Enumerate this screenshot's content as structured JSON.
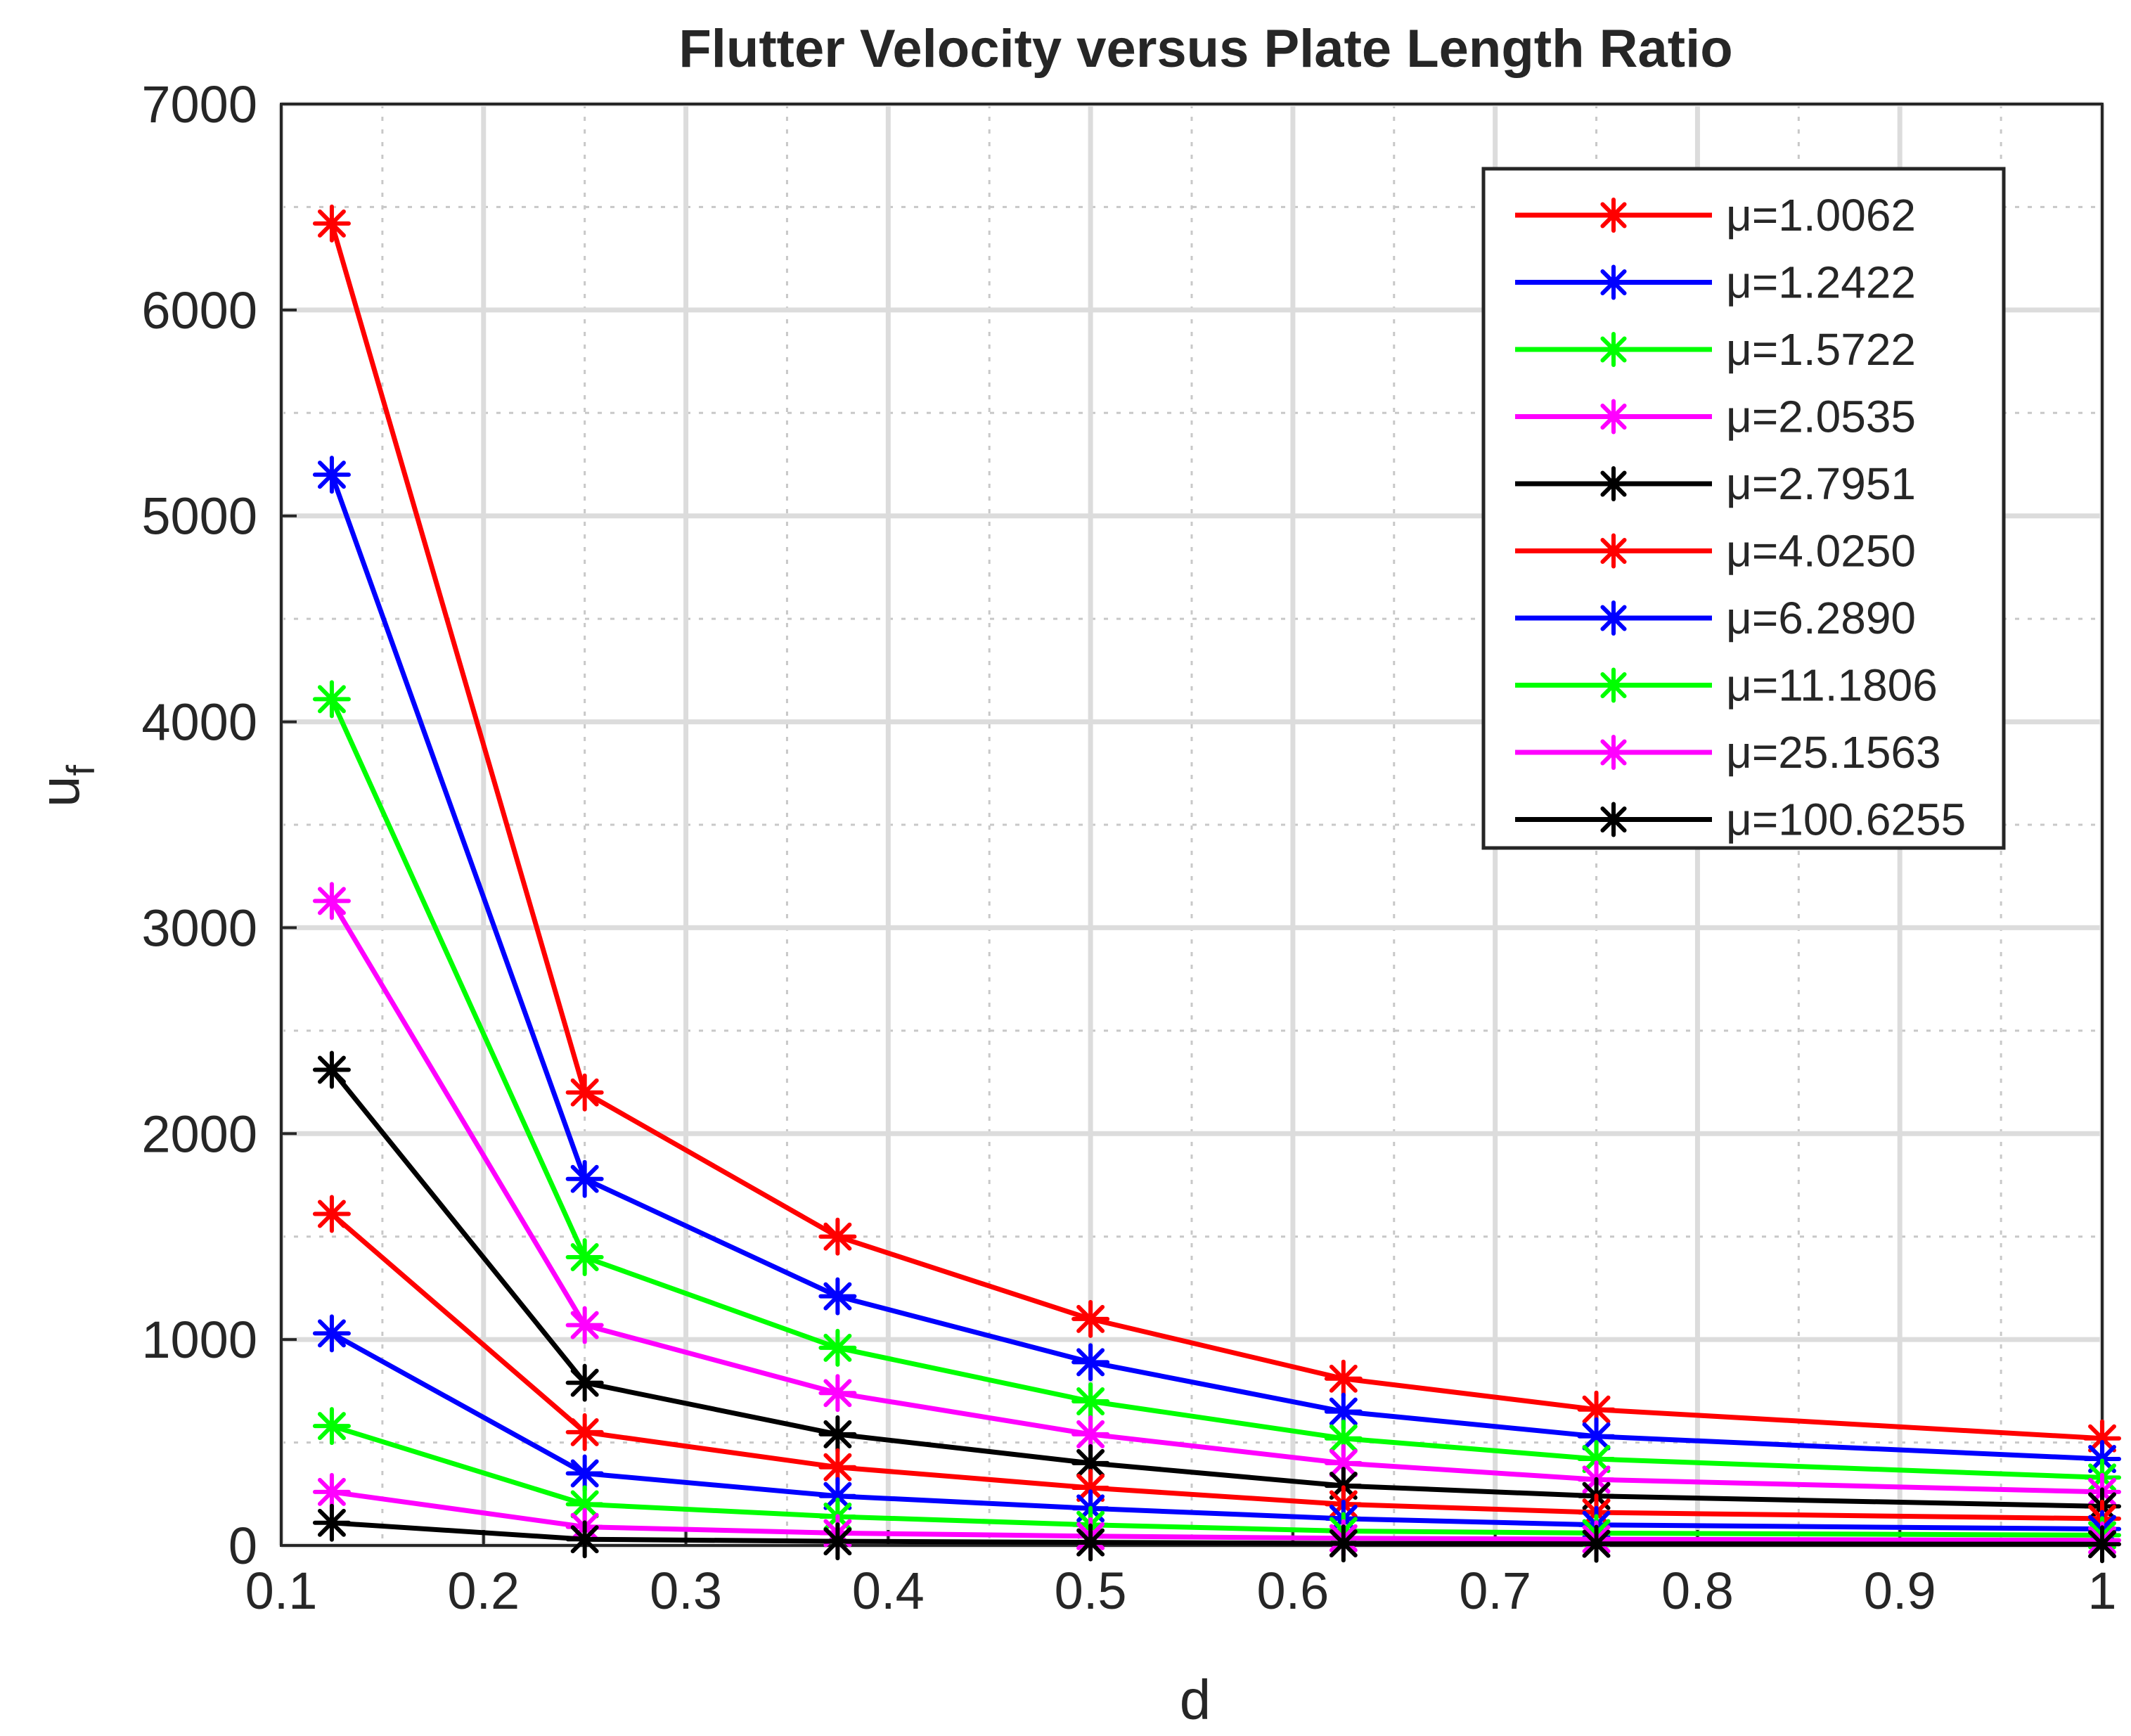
{
  "chart_data": {
    "type": "line",
    "title": "Flutter Velocity versus Plate Length Ratio",
    "xlabel": "d",
    "ylabel": "u",
    "ylabel_subscript": "f",
    "xlim": [
      0.1,
      1.0
    ],
    "ylim": [
      0,
      7000
    ],
    "xticks": [
      0.1,
      0.2,
      0.3,
      0.4,
      0.5,
      0.6,
      0.7,
      0.8,
      0.9,
      1.0
    ],
    "xtick_labels": [
      "0.1",
      "0.2",
      "0.3",
      "0.4",
      "0.5",
      "0.6",
      "0.7",
      "0.8",
      "0.9",
      "1"
    ],
    "yticks": [
      0,
      1000,
      2000,
      3000,
      4000,
      5000,
      6000,
      7000
    ],
    "ytick_labels": [
      "0",
      "1000",
      "2000",
      "3000",
      "4000",
      "5000",
      "6000",
      "7000"
    ],
    "grid": true,
    "minor_grid": true,
    "legend_position": "top-right",
    "legend_prefix": "μ=",
    "x": [
      0.125,
      0.25,
      0.375,
      0.5,
      0.625,
      0.75,
      1.0
    ],
    "series": [
      {
        "name": "1.0062",
        "color": "#ff0000",
        "values": [
          6420,
          2200,
          1500,
          1100,
          810,
          660,
          520
        ]
      },
      {
        "name": "1.2422",
        "color": "#0000ff",
        "values": [
          5200,
          1780,
          1210,
          890,
          650,
          530,
          420
        ]
      },
      {
        "name": "1.5722",
        "color": "#00ff00",
        "values": [
          4110,
          1400,
          960,
          700,
          520,
          420,
          330
        ]
      },
      {
        "name": "2.0535",
        "color": "#ff00ff",
        "values": [
          3130,
          1070,
          740,
          540,
          400,
          320,
          260
        ]
      },
      {
        "name": "2.7951",
        "color": "#000000",
        "values": [
          2310,
          790,
          540,
          400,
          290,
          240,
          190
        ]
      },
      {
        "name": "4.0250",
        "color": "#ff0000",
        "values": [
          1610,
          550,
          380,
          280,
          200,
          160,
          130
        ]
      },
      {
        "name": "6.2890",
        "color": "#0000ff",
        "values": [
          1030,
          350,
          240,
          180,
          130,
          100,
          80
        ]
      },
      {
        "name": "11.1806",
        "color": "#00ff00",
        "values": [
          580,
          200,
          140,
          100,
          70,
          60,
          50
        ]
      },
      {
        "name": "25.1563",
        "color": "#ff00ff",
        "values": [
          260,
          90,
          60,
          45,
          35,
          30,
          25
        ]
      },
      {
        "name": "100.6255",
        "color": "#000000",
        "values": [
          110,
          30,
          20,
          15,
          10,
          8,
          6
        ]
      }
    ]
  }
}
